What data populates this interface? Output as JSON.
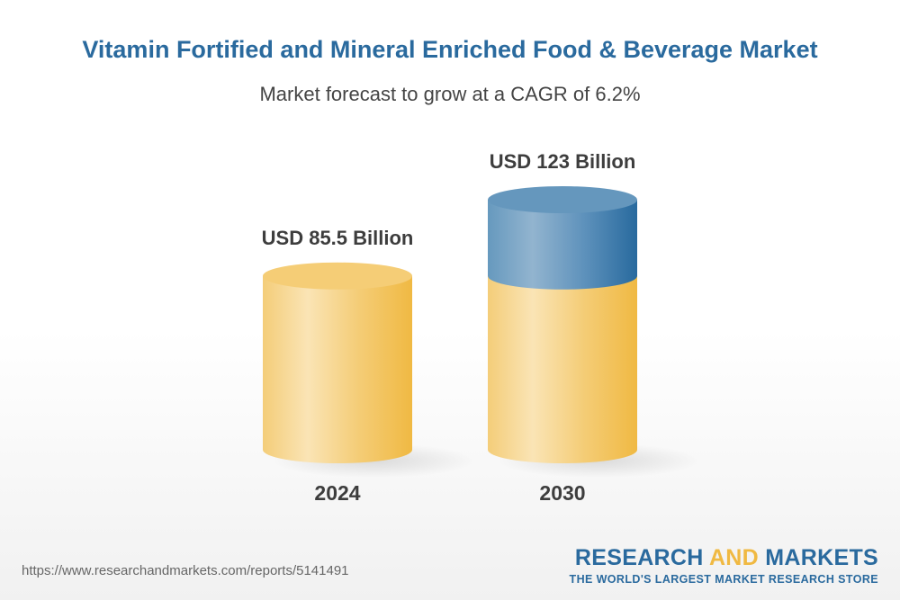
{
  "chart_data": {
    "type": "bar",
    "title": "Vitamin Fortified and Mineral Enriched Food & Beverage Market",
    "subtitle": "Market forecast to grow at a CAGR of 6.2%",
    "categories": [
      "2024",
      "2030"
    ],
    "values": [
      85.5,
      123
    ],
    "data_labels": [
      "USD 85.5 Billion",
      "USD 123 Billion"
    ],
    "unit": "USD Billion",
    "style": "3d-cylinder",
    "colors": {
      "base": "#f3c55e",
      "growth": "#2a6a9e"
    }
  },
  "footer": {
    "url": "https://www.researchandmarkets.com/reports/5141491",
    "logo_word1": "RESEARCH",
    "logo_word2": "AND",
    "logo_word3": "MARKETS",
    "logo_tagline": "THE WORLD'S LARGEST MARKET RESEARCH STORE"
  }
}
